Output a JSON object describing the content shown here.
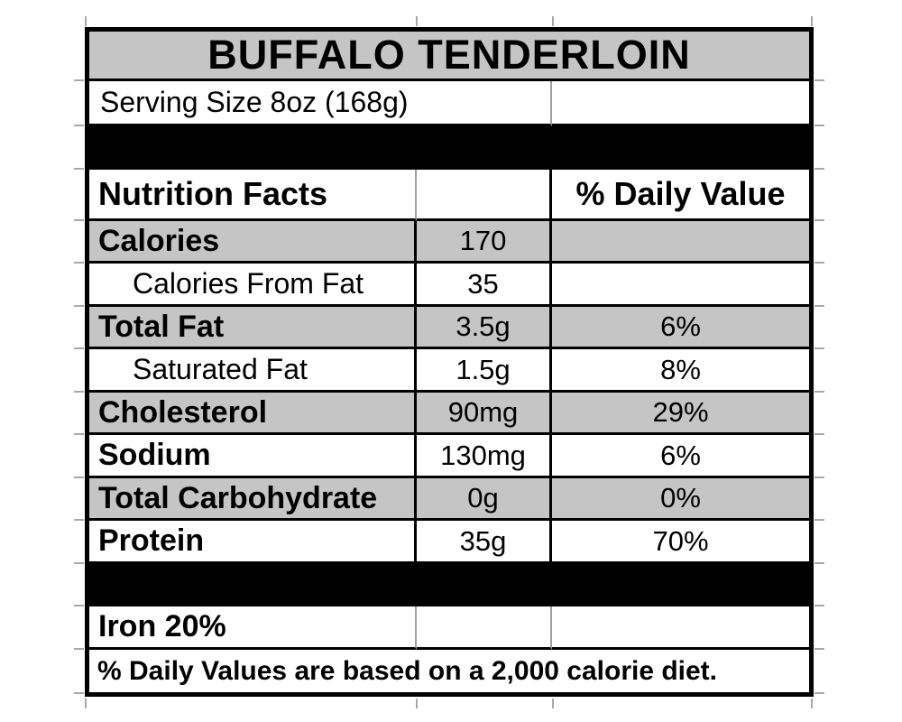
{
  "label": {
    "title": "BUFFALO TENDERLOIN",
    "serving_size": "Serving Size 8oz (168g)",
    "columns": {
      "facts": "Nutrition Facts",
      "daily_value": "% Daily Value"
    },
    "rows": [
      {
        "name": "Calories",
        "amount": "170",
        "daily_value": ""
      },
      {
        "name": "Calories From Fat",
        "amount": "35",
        "daily_value": ""
      },
      {
        "name": "Total Fat",
        "amount": "3.5g",
        "daily_value": "6%"
      },
      {
        "name": "Saturated Fat",
        "amount": "1.5g",
        "daily_value": "8%"
      },
      {
        "name": "Cholesterol",
        "amount": "90mg",
        "daily_value": "29%"
      },
      {
        "name": "Sodium",
        "amount": "130mg",
        "daily_value": "6%"
      },
      {
        "name": "Total Carbohydrate",
        "amount": "0g",
        "daily_value": "0%"
      },
      {
        "name": "Protein",
        "amount": "35g",
        "daily_value": "70%"
      }
    ],
    "iron": "Iron 20%",
    "footnote": "% Daily Values are based on a 2,000 calorie diet."
  },
  "colors": {
    "shaded_row": "#c5c5c5",
    "separator_band": "#000000",
    "border": "#000000",
    "gridline": "#a8a8a8",
    "background": "#ffffff",
    "text": "#000000"
  }
}
